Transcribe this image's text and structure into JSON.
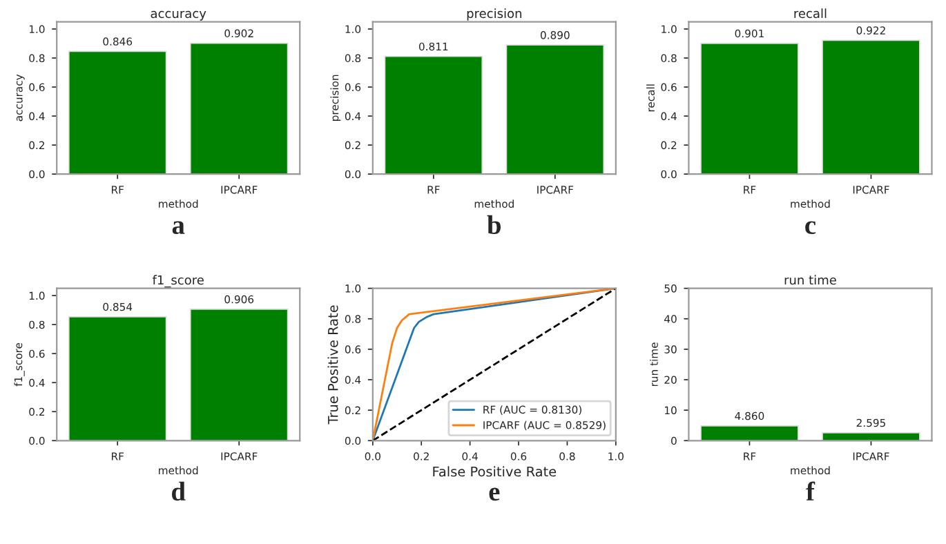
{
  "chart_data": [
    {
      "type": "bar",
      "title": "accuracy",
      "xlabel": "method",
      "ylabel": "accuracy",
      "categories": [
        "RF",
        "IPCARF"
      ],
      "values": [
        0.846,
        0.902
      ],
      "value_labels": [
        "0.846",
        "0.902"
      ],
      "color": "#008000",
      "ylim": [
        0,
        1.05
      ],
      "yticks": [
        {
          "value": 0,
          "label": "0.0"
        },
        {
          "value": 0.2,
          "label": "0.2"
        },
        {
          "value": 0.4,
          "label": "0.4"
        },
        {
          "value": 0.6,
          "label": "0.6"
        },
        {
          "value": 0.8,
          "label": "0.8"
        },
        {
          "value": 1,
          "label": "1.0"
        }
      ],
      "annotations": [
        "a"
      ],
      "legend": false,
      "grid": false
    },
    {
      "type": "bar",
      "title": "precision",
      "xlabel": "method",
      "ylabel": "precision",
      "categories": [
        "RF",
        "IPCARF"
      ],
      "values": [
        0.811,
        0.89
      ],
      "value_labels": [
        "0.811",
        "0.890"
      ],
      "color": "#008000",
      "ylim": [
        0,
        1.05
      ],
      "yticks": [
        {
          "value": 0,
          "label": "0.0"
        },
        {
          "value": 0.2,
          "label": "0.2"
        },
        {
          "value": 0.4,
          "label": "0.4"
        },
        {
          "value": 0.6,
          "label": "0.6"
        },
        {
          "value": 0.8,
          "label": "0.8"
        },
        {
          "value": 1,
          "label": "1.0"
        }
      ],
      "annotations": [
        "b"
      ],
      "legend": false,
      "grid": false
    },
    {
      "type": "bar",
      "title": "recall",
      "xlabel": "method",
      "ylabel": "recall",
      "categories": [
        "RF",
        "IPCARF"
      ],
      "values": [
        0.901,
        0.922
      ],
      "value_labels": [
        "0.901",
        "0.922"
      ],
      "color": "#008000",
      "ylim": [
        0,
        1.05
      ],
      "yticks": [
        {
          "value": 0,
          "label": "0.0"
        },
        {
          "value": 0.2,
          "label": "0.2"
        },
        {
          "value": 0.4,
          "label": "0.4"
        },
        {
          "value": 0.6,
          "label": "0.6"
        },
        {
          "value": 0.8,
          "label": "0.8"
        },
        {
          "value": 1,
          "label": "1.0"
        }
      ],
      "annotations": [
        "c"
      ],
      "legend": false,
      "grid": false
    },
    {
      "type": "bar",
      "title": "f1_score",
      "xlabel": "method",
      "ylabel": "f1_score",
      "categories": [
        "RF",
        "IPCARF"
      ],
      "values": [
        0.854,
        0.906
      ],
      "value_labels": [
        "0.854",
        "0.906"
      ],
      "color": "#008000",
      "ylim": [
        0,
        1.05
      ],
      "yticks": [
        {
          "value": 0,
          "label": "0.0"
        },
        {
          "value": 0.2,
          "label": "0.2"
        },
        {
          "value": 0.4,
          "label": "0.4"
        },
        {
          "value": 0.6,
          "label": "0.6"
        },
        {
          "value": 0.8,
          "label": "0.8"
        },
        {
          "value": 1,
          "label": "1.0"
        }
      ],
      "annotations": [
        "d"
      ],
      "legend": false,
      "grid": false
    },
    {
      "type": "line",
      "xlabel": "False Positive Rate",
      "ylabel": "True Positive Rate",
      "xlim": [
        0,
        1
      ],
      "ylim": [
        0,
        1
      ],
      "xticks": [
        {
          "value": 0,
          "label": "0.0"
        },
        {
          "value": 0.2,
          "label": "0.2"
        },
        {
          "value": 0.4,
          "label": "0.4"
        },
        {
          "value": 0.6,
          "label": "0.6"
        },
        {
          "value": 0.8,
          "label": "0.8"
        },
        {
          "value": 1,
          "label": "1.0"
        }
      ],
      "yticks": [
        {
          "value": 0,
          "label": "0.0"
        },
        {
          "value": 0.2,
          "label": "0.2"
        },
        {
          "value": 0.4,
          "label": "0.4"
        },
        {
          "value": 0.6,
          "label": "0.6"
        },
        {
          "value": 0.8,
          "label": "0.8"
        },
        {
          "value": 1,
          "label": "1.0"
        }
      ],
      "series": [
        {
          "name": "RF (AUC = 0.8130)",
          "color": "#1f77b4",
          "x": [
            0,
            0.17,
            0.19,
            0.22,
            0.25,
            1
          ],
          "values": [
            0,
            0.74,
            0.78,
            0.81,
            0.83,
            1
          ]
        },
        {
          "name": "IPCARF (AUC = 0.8529)",
          "color": "#ff7f0e",
          "x": [
            0,
            0.08,
            0.1,
            0.12,
            0.15,
            1
          ],
          "values": [
            0,
            0.64,
            0.74,
            0.79,
            0.83,
            1
          ]
        },
        {
          "color": "#000000",
          "line_style": "dashed",
          "x": [
            0,
            1
          ],
          "values": [
            0,
            1
          ]
        }
      ],
      "legend": "bottom right",
      "annotations": [
        "e"
      ],
      "grid": false
    },
    {
      "type": "bar",
      "title": "run time",
      "xlabel": "method",
      "ylabel": "run time",
      "categories": [
        "RF",
        "IPCARF"
      ],
      "values": [
        4.86,
        2.595
      ],
      "value_labels": [
        "4.860",
        "2.595"
      ],
      "color": "#008000",
      "ylim": [
        0,
        50
      ],
      "yticks": [
        0,
        10,
        20,
        30,
        40,
        50
      ],
      "annotations": [
        "f"
      ],
      "legend": false,
      "grid": false
    }
  ]
}
